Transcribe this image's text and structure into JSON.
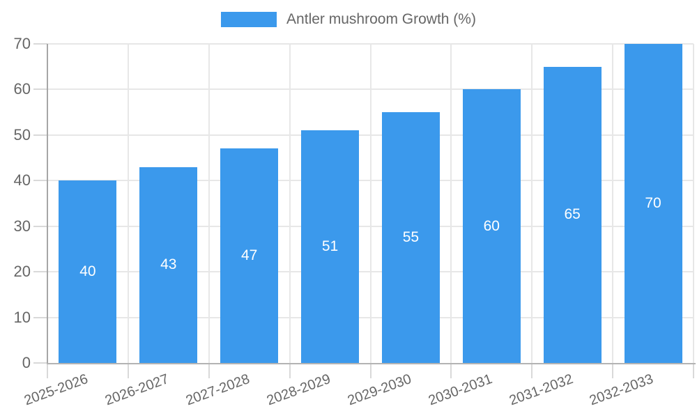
{
  "legend": {
    "label": "Antler mushroom Growth (%)"
  },
  "chart_data": {
    "type": "bar",
    "title": "",
    "series_name": "Antler mushroom Growth (%)",
    "categories": [
      "2025-2026",
      "2026-2027",
      "2027-2028",
      "2028-2029",
      "2029-2030",
      "2030-2031",
      "2031-2032",
      "2032-2033"
    ],
    "values": [
      40,
      43,
      47,
      51,
      55,
      60,
      65,
      70
    ],
    "value_labels": [
      "40",
      "43",
      "47",
      "51",
      "55",
      "60",
      "65",
      "70"
    ],
    "value_label_position": "inside-center",
    "ylabel": "",
    "xlabel": "",
    "ylim": [
      0,
      70
    ],
    "ytick_step": 10,
    "ytick_labels": [
      "0",
      "10",
      "20",
      "30",
      "40",
      "50",
      "60",
      "70"
    ],
    "xtick_rotation_deg": -20,
    "grid": true,
    "legend_position": "top",
    "colors": {
      "bar": "#3B99EC",
      "value_label": "#ffffff",
      "axis_text": "#666666",
      "gridline": "#e7e7e7",
      "tick_mark": "#d9d9d9",
      "y_axis_line": "#a6a6a6",
      "x_axis_line": "#b3b3b3",
      "background": "#ffffff"
    }
  }
}
